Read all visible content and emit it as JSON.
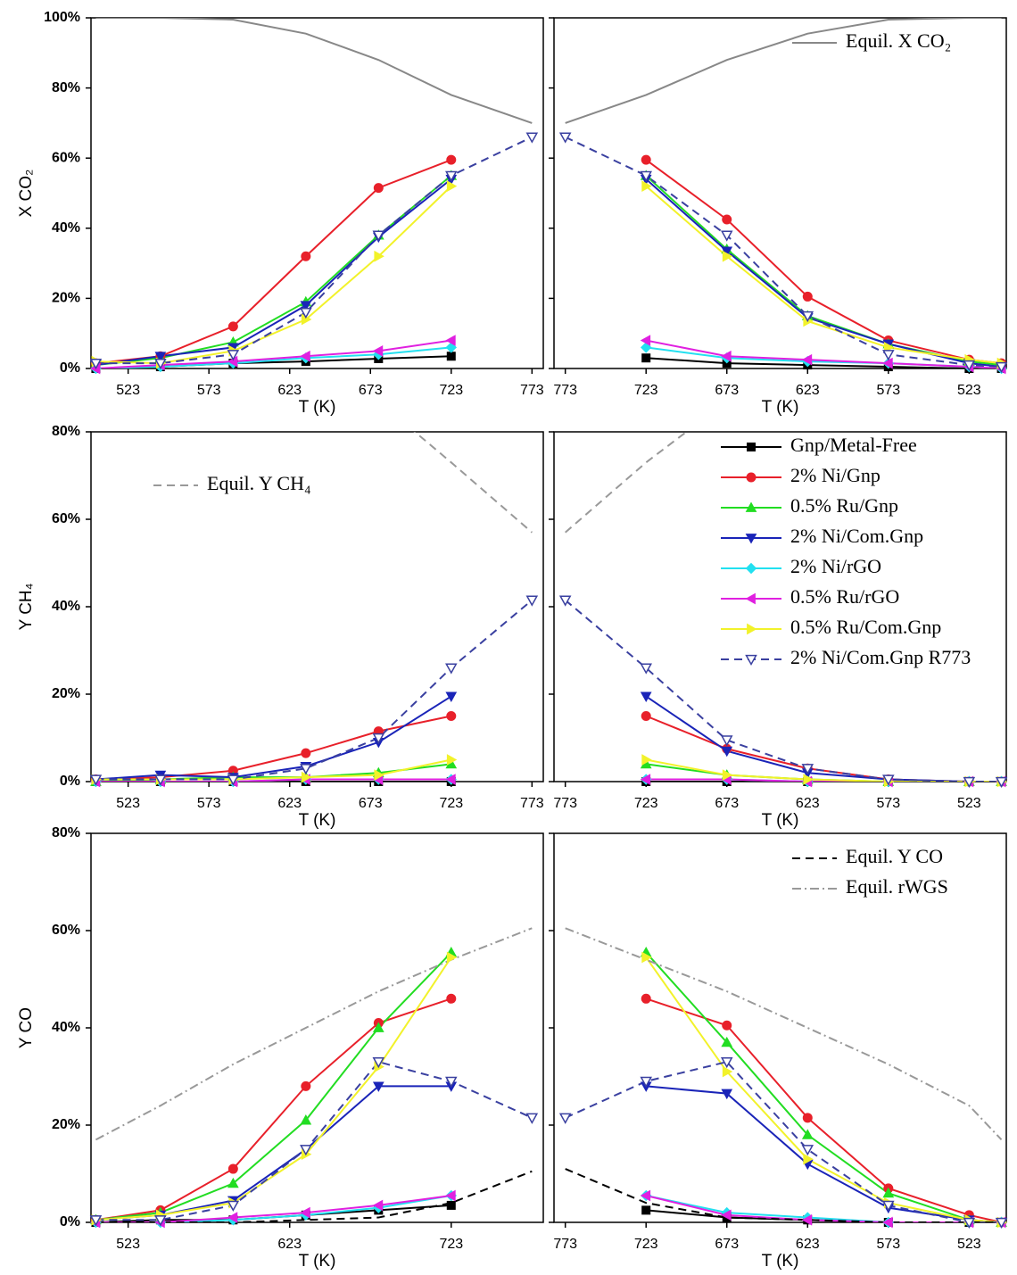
{
  "chart_data": [
    {
      "type": "line",
      "ylabel": "X CO₂",
      "xlabel": "T (K)",
      "x": [
        503,
        543,
        588,
        633,
        678,
        723,
        773
      ],
      "xlim": [
        500,
        780
      ],
      "xticks": [
        523,
        573,
        623,
        673,
        723,
        773
      ],
      "ylim": [
        0,
        100
      ],
      "yticks": [
        {
          "value": 0,
          "label": "0%"
        },
        {
          "value": 20,
          "label": "20%"
        },
        {
          "value": 40,
          "label": "40%"
        },
        {
          "value": 60,
          "label": "60%"
        },
        {
          "value": 80,
          "label": "80%"
        },
        {
          "value": 100,
          "label": "100%"
        }
      ],
      "series": [
        {
          "color": "#000000",
          "marker": "square",
          "values": [
            0,
            0.5,
            1.5,
            2,
            2.8,
            3.5,
            null
          ]
        },
        {
          "color": "#e8202a",
          "marker": "circle",
          "values": [
            1.5,
            3.5,
            12,
            32,
            51.5,
            59.5,
            null
          ]
        },
        {
          "color": "#22dd22",
          "marker": "triangle-up",
          "values": [
            1,
            3,
            7.5,
            19,
            38,
            55,
            null
          ]
        },
        {
          "color": "#1a24b8",
          "marker": "triangle-down",
          "values": [
            1,
            3.5,
            6,
            18,
            37.5,
            54,
            null
          ]
        },
        {
          "color": "#22e0f0",
          "marker": "diamond",
          "values": [
            0,
            0.5,
            1.5,
            3,
            4,
            6,
            null
          ]
        },
        {
          "color": "#e020e0",
          "marker": "triangle-left",
          "values": [
            0,
            1,
            2,
            3.5,
            5,
            8,
            null
          ]
        },
        {
          "color": "#f2f22a",
          "marker": "triangle-right",
          "values": [
            2,
            1.5,
            5,
            14,
            32,
            52,
            null
          ]
        },
        {
          "color": "#3a40a0",
          "marker": "triangle-down-open",
          "dash": "dashed",
          "values": [
            1.5,
            1.5,
            4,
            16,
            38,
            55,
            66
          ]
        },
        {
          "color": "#888888",
          "values": [
            100,
            100,
            99.5,
            95.5,
            88,
            78,
            70
          ]
        }
      ]
    },
    {
      "type": "line",
      "xlabel": "T (K)",
      "x": [
        773,
        723,
        673,
        623,
        573,
        523,
        503
      ],
      "xlim": [
        780,
        500
      ],
      "xticks": [
        773,
        723,
        673,
        623,
        573,
        523
      ],
      "ylim": [
        0,
        100
      ],
      "yticks": [
        0,
        20,
        40,
        60,
        80,
        100
      ],
      "legend": "upper right",
      "series": [
        {
          "color": "#000000",
          "marker": "square",
          "values": [
            null,
            3,
            1.5,
            1,
            0.5,
            0,
            0
          ]
        },
        {
          "color": "#e8202a",
          "marker": "circle",
          "values": [
            null,
            59.5,
            42.5,
            20.5,
            8,
            2.5,
            1.5
          ]
        },
        {
          "color": "#22dd22",
          "marker": "triangle-up",
          "values": [
            null,
            55,
            34,
            15,
            7,
            2,
            1
          ]
        },
        {
          "color": "#1a24b8",
          "marker": "triangle-down",
          "values": [
            null,
            54,
            33.5,
            14.5,
            7,
            1.5,
            0.5
          ]
        },
        {
          "color": "#22e0f0",
          "marker": "diamond",
          "values": [
            null,
            6,
            3,
            2,
            1.5,
            0.5,
            0
          ]
        },
        {
          "color": "#e020e0",
          "marker": "triangle-left",
          "values": [
            null,
            8,
            3.5,
            2.5,
            1.5,
            0.5,
            0
          ]
        },
        {
          "color": "#f2f22a",
          "marker": "triangle-right",
          "values": [
            null,
            52,
            32,
            13.5,
            6,
            2.5,
            1.5
          ]
        },
        {
          "color": "#3a40a0",
          "marker": "triangle-down-open",
          "dash": "dashed",
          "values": [
            66,
            55,
            38,
            15,
            4,
            1,
            0.5
          ]
        },
        {
          "name": "Equil. X CO₂",
          "color": "#888888",
          "values": [
            70,
            78,
            88,
            95.5,
            99.5,
            100,
            100
          ]
        }
      ]
    },
    {
      "type": "line",
      "ylabel": "Y CH₄",
      "xlabel": "T (K)",
      "x": [
        503,
        543,
        588,
        633,
        678,
        723,
        773
      ],
      "xlim": [
        500,
        780
      ],
      "xticks": [
        523,
        573,
        623,
        673,
        723,
        773
      ],
      "ylim": [
        0,
        80
      ],
      "yticks": [
        {
          "value": 0,
          "label": "0%"
        },
        {
          "value": 20,
          "label": "20%"
        },
        {
          "value": 40,
          "label": "40%"
        },
        {
          "value": 60,
          "label": "60%"
        },
        {
          "value": 80,
          "label": "80%"
        }
      ],
      "legend": "upper left",
      "series": [
        {
          "color": "#000000",
          "marker": "square",
          "values": [
            0,
            0,
            0,
            0,
            0,
            0,
            null
          ]
        },
        {
          "color": "#e8202a",
          "marker": "circle",
          "values": [
            0.5,
            1,
            2.5,
            6.5,
            11.5,
            15,
            null
          ]
        },
        {
          "color": "#22dd22",
          "marker": "triangle-up",
          "values": [
            0,
            0.5,
            1,
            1,
            2,
            4,
            null
          ]
        },
        {
          "color": "#1a24b8",
          "marker": "triangle-down",
          "values": [
            0.5,
            1.5,
            1,
            3.5,
            9,
            19.5,
            null
          ]
        },
        {
          "color": "#22e0f0",
          "marker": "diamond",
          "values": [
            0,
            0,
            0,
            0.5,
            0.5,
            0.5,
            null
          ]
        },
        {
          "color": "#e020e0",
          "marker": "triangle-left",
          "values": [
            0,
            0,
            0,
            0.5,
            0.5,
            0.5,
            null
          ]
        },
        {
          "color": "#f2f22a",
          "marker": "triangle-right",
          "values": [
            0.5,
            0.5,
            0.5,
            1,
            1.5,
            5,
            null
          ]
        },
        {
          "color": "#3a40a0",
          "marker": "triangle-down-open",
          "dash": "dashed",
          "values": [
            0.5,
            0.5,
            0.5,
            3,
            10,
            26,
            41.5
          ]
        },
        {
          "name": "Equil. Y CH₄",
          "color": "#999999",
          "dash": "dashed",
          "values": [
            null,
            null,
            null,
            null,
            87,
            73,
            57
          ]
        }
      ]
    },
    {
      "type": "line",
      "xlabel": "T (K)",
      "x": [
        773,
        723,
        673,
        623,
        573,
        523,
        503
      ],
      "xlim": [
        780,
        500
      ],
      "xticks": [
        773,
        723,
        673,
        623,
        573,
        523
      ],
      "ylim": [
        0,
        80
      ],
      "yticks": [
        0,
        20,
        40,
        60,
        80
      ],
      "legend": "upper right",
      "series": [
        {
          "name": "Gnp/Metal-Free",
          "color": "#000000",
          "marker": "square",
          "values": [
            null,
            0,
            0,
            0,
            0,
            0,
            0
          ]
        },
        {
          "name": "2% Ni/Gnp",
          "color": "#e8202a",
          "marker": "circle",
          "values": [
            null,
            15,
            7.5,
            3,
            0.5,
            0,
            0
          ]
        },
        {
          "name": "0.5% Ru/Gnp",
          "color": "#22dd22",
          "marker": "triangle-up",
          "values": [
            null,
            4,
            1.5,
            0.5,
            0,
            0,
            0
          ]
        },
        {
          "name": "2% Ni/Com.Gnp",
          "color": "#1a24b8",
          "marker": "triangle-down",
          "values": [
            null,
            19.5,
            7,
            2,
            0.5,
            0,
            0
          ]
        },
        {
          "name": "2% Ni/rGO",
          "color": "#22e0f0",
          "marker": "diamond",
          "values": [
            null,
            0.5,
            0.5,
            0,
            0,
            0,
            0
          ]
        },
        {
          "name": "0.5% Ru/rGO",
          "color": "#e020e0",
          "marker": "triangle-left",
          "values": [
            null,
            0.5,
            0.5,
            0,
            0,
            0,
            0
          ]
        },
        {
          "name": "0.5% Ru/Com.Gnp",
          "color": "#f2f22a",
          "marker": "triangle-right",
          "values": [
            null,
            5,
            1.5,
            0.5,
            0,
            0,
            0
          ]
        },
        {
          "name": "2% Ni/Com.Gnp R773",
          "color": "#3a40a0",
          "marker": "triangle-down-open",
          "dash": "dashed",
          "values": [
            41.5,
            26,
            9.5,
            3,
            0.5,
            0,
            0
          ]
        },
        {
          "color": "#999999",
          "dash": "dashed",
          "values": [
            57,
            73,
            87,
            null,
            null,
            null,
            null
          ]
        }
      ]
    },
    {
      "type": "line",
      "ylabel": "Y CO",
      "xlabel": "T (K)",
      "x": [
        503,
        543,
        588,
        633,
        678,
        723,
        773
      ],
      "xlim": [
        500,
        780
      ],
      "xticks": [
        523,
        623,
        723
      ],
      "ylim": [
        0,
        80
      ],
      "yticks": [
        {
          "value": 0,
          "label": "0%"
        },
        {
          "value": 20,
          "label": "20%"
        },
        {
          "value": 40,
          "label": "40%"
        },
        {
          "value": 60,
          "label": "60%"
        },
        {
          "value": 80,
          "label": "80%"
        }
      ],
      "series": [
        {
          "color": "#000000",
          "marker": "square",
          "values": [
            0,
            0.5,
            0.5,
            1.5,
            2.5,
            3.5,
            null
          ]
        },
        {
          "color": "#e8202a",
          "marker": "circle",
          "values": [
            0.5,
            2.5,
            11,
            28,
            41,
            46,
            null
          ]
        },
        {
          "color": "#22dd22",
          "marker": "triangle-up",
          "values": [
            0.5,
            2,
            8,
            21,
            40,
            55.5,
            null
          ]
        },
        {
          "color": "#1a24b8",
          "marker": "triangle-down",
          "values": [
            0.5,
            1.5,
            4.5,
            15,
            28,
            28,
            null
          ]
        },
        {
          "color": "#22e0f0",
          "marker": "diamond",
          "values": [
            0,
            0,
            0.5,
            1.5,
            3,
            5.5,
            null
          ]
        },
        {
          "color": "#e020e0",
          "marker": "triangle-left",
          "values": [
            0,
            0,
            1,
            2,
            3.5,
            5.5,
            null
          ]
        },
        {
          "color": "#f2f22a",
          "marker": "triangle-right",
          "values": [
            0.5,
            1.5,
            4,
            14,
            32,
            54.5,
            null
          ]
        },
        {
          "color": "#3a40a0",
          "marker": "triangle-down-open",
          "dash": "dashed",
          "values": [
            0.5,
            0.5,
            3.5,
            15,
            33,
            29,
            21.5
          ]
        },
        {
          "color": "#000000",
          "dash": "dashed",
          "values": [
            0,
            0,
            0,
            0.5,
            1,
            4,
            10.5
          ]
        },
        {
          "color": "#999999",
          "dash": "dashdot",
          "values": [
            17,
            24,
            32.5,
            40,
            47.5,
            54,
            60.5
          ]
        }
      ]
    },
    {
      "type": "line",
      "xlabel": "T (K)",
      "x": [
        773,
        723,
        673,
        623,
        573,
        523,
        503
      ],
      "xlim": [
        780,
        500
      ],
      "xticks": [
        773,
        723,
        673,
        623,
        573,
        523
      ],
      "ylim": [
        0,
        80
      ],
      "yticks": [
        0,
        20,
        40,
        60,
        80
      ],
      "legend": "upper right",
      "series": [
        {
          "color": "#000000",
          "marker": "square",
          "values": [
            null,
            2.5,
            1,
            0.5,
            0,
            0,
            0
          ]
        },
        {
          "color": "#e8202a",
          "marker": "circle",
          "values": [
            null,
            46,
            40.5,
            21.5,
            7,
            1.5,
            0
          ]
        },
        {
          "color": "#22dd22",
          "marker": "triangle-up",
          "values": [
            null,
            55.5,
            37,
            18,
            6,
            0.5,
            0
          ]
        },
        {
          "color": "#1a24b8",
          "marker": "triangle-down",
          "values": [
            null,
            28,
            26.5,
            12,
            3,
            0.5,
            0
          ]
        },
        {
          "color": "#22e0f0",
          "marker": "diamond",
          "values": [
            null,
            5.5,
            2,
            1,
            0,
            0,
            0
          ]
        },
        {
          "color": "#e020e0",
          "marker": "triangle-left",
          "values": [
            null,
            5.5,
            1.5,
            0.5,
            0,
            0,
            0
          ]
        },
        {
          "color": "#f2f22a",
          "marker": "triangle-right",
          "values": [
            null,
            54.5,
            31,
            13,
            4,
            0.5,
            0
          ]
        },
        {
          "color": "#3a40a0",
          "marker": "triangle-down-open",
          "dash": "dashed",
          "values": [
            21.5,
            29,
            33,
            15,
            3.5,
            0,
            0
          ]
        },
        {
          "name": "Equil. Y CO",
          "color": "#000000",
          "dash": "dashed",
          "values": [
            11,
            4,
            1,
            0.5,
            0,
            0,
            0
          ]
        },
        {
          "name": "Equil. rWGS",
          "color": "#999999",
          "dash": "dashdot",
          "values": [
            60.5,
            54,
            47.5,
            40,
            32.5,
            24,
            17
          ]
        }
      ]
    }
  ]
}
